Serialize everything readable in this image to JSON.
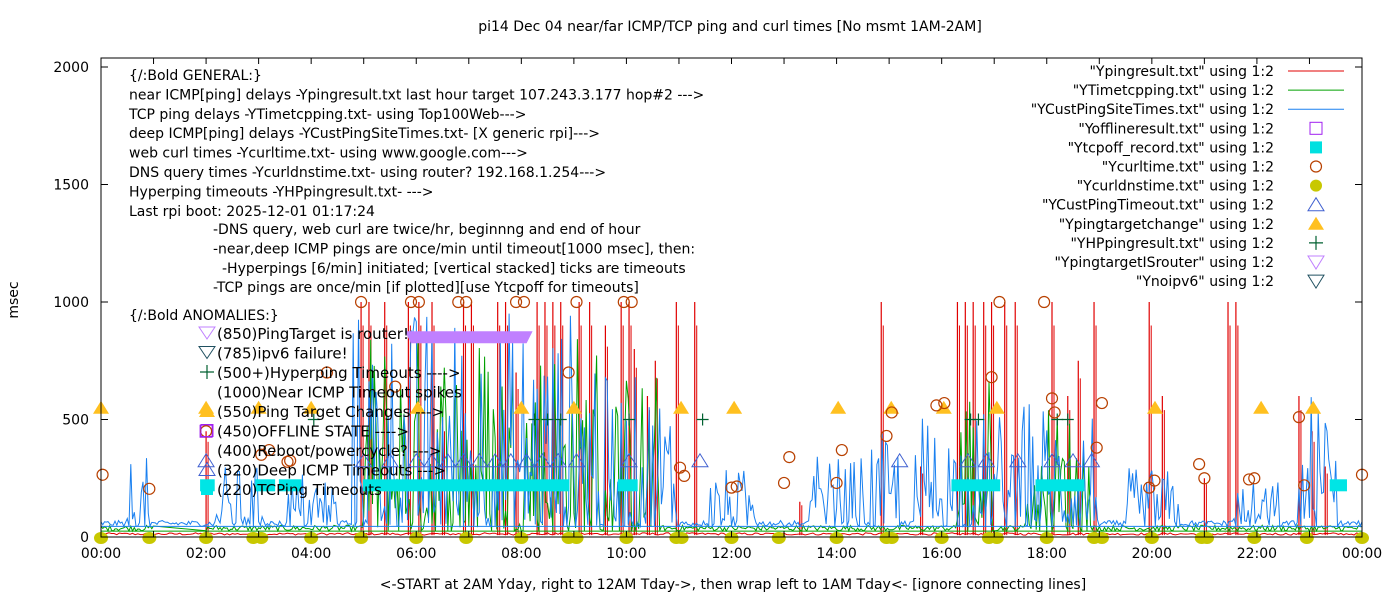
{
  "chart_data": {
    "type": "line",
    "title": "pi14 Dec 04  near/far ICMP/TCP ping and curl times [No msmt 1AM-2AM]",
    "xlabel": "<-START at 2AM Yday, right to 12AM Tday->, then wrap left to 1AM Tday<- [ignore connecting lines]",
    "ylabel": "msec",
    "xlim_hours": [
      0,
      24
    ],
    "ylim": [
      0,
      2000
    ],
    "x_ticks": [
      "00:00",
      "02:00",
      "04:00",
      "06:00",
      "08:00",
      "10:00",
      "12:00",
      "14:00",
      "16:00",
      "18:00",
      "20:00",
      "22:00",
      "00:00"
    ],
    "y_ticks": [
      0,
      500,
      1000,
      1500,
      2000
    ],
    "grid": false,
    "legend_position": "top-right",
    "annotations_general": [
      "{/:Bold GENERAL:}",
      "near ICMP[ping] delays -Ypingresult.txt last hour target 107.243.3.177 hop#2 --->",
      "TCP ping delays -YTimetcpping.txt- using Top100Web--->",
      "deep ICMP[ping] delays -YCustPingSiteTimes.txt- [X generic rpi]--->",
      "web curl times -Ycurltime.txt- using www.google.com--->",
      "DNS query times -Ycurldnstime.txt- using router? 192.168.1.254--->",
      "Hyperping timeouts -YHPpingresult.txt- --->",
      "Last rpi boot: 2025-12-01 01:17:24"
    ],
    "annotations_notes": [
      "-DNS query, web curl are twice/hr, beginnng and end of hour",
      "-near,deep ICMP pings are once/min until timeout[1000 msec], then:",
      "-Hyperpings [6/min] initiated; [vertical stacked] ticks are timeouts",
      "-TCP pings are once/min [if plotted][use Ytcpoff for timeouts]"
    ],
    "annotations_anomalies_title": "{/:Bold ANOMALIES:}",
    "annotations_anomalies": [
      {
        "symbol": "tri-down-open-lavender",
        "text": "(850)PingTarget is router!"
      },
      {
        "symbol": "tri-down-open-darkteal",
        "text": "(785)ipv6 failure!"
      },
      {
        "symbol": "plus-darkgreen",
        "text": "(500+)Hyperping Timeouts ---->"
      },
      {
        "symbol": "none",
        "text": "(1000)Near ICMP Timeout spikes"
      },
      {
        "symbol": "tri-up-filled-orange",
        "text": "(550)Ping Target Changes --->"
      },
      {
        "symbol": "square-open-purple",
        "text": "(450)OFFLINE STATE ---->"
      },
      {
        "symbol": "none",
        "text": "(400)Reboot/powercycle? --->"
      },
      {
        "symbol": "tri-up-open-blue",
        "text": "(320)Deep ICMP Timeouts --->"
      },
      {
        "symbol": "square-filled-cyan",
        "text": "(220)TCPing Timeouts"
      }
    ],
    "legend": [
      {
        "label": "\"Ypingresult.txt\" using 1:2",
        "style": "line",
        "color": "#e00000"
      },
      {
        "label": "\"YTimetcpping.txt\" using 1:2",
        "style": "line",
        "color": "#00a000"
      },
      {
        "label": "\"YCustPingSiteTimes.txt\" using 1:2",
        "style": "line",
        "color": "#1a80f0"
      },
      {
        "label": "\"Yofflineresult.txt\" using 1:2",
        "style": "square-open",
        "color": "#a020f0"
      },
      {
        "label": "\"Ytcpoff_record.txt\" using 1:2",
        "style": "square-filled",
        "color": "#00e0e0"
      },
      {
        "label": "\"Ycurltime.txt\" using 1:2",
        "style": "circle-open",
        "color": "#b84000"
      },
      {
        "label": "\"Ycurldnstime.txt\" using 1:2",
        "style": "circle-filled",
        "color": "#c8c800"
      },
      {
        "label": "\"YCustPingTimeout.txt\" using 1:2",
        "style": "tri-up-open",
        "color": "#4060d0"
      },
      {
        "label": "\"Ypingtargetchange\" using 1:2",
        "style": "tri-up-filled",
        "color": "#ffc020"
      },
      {
        "label": "\"YHPpingresult.txt\" using 1:2",
        "style": "plus",
        "color": "#006030"
      },
      {
        "label": "\"YpingtargetISrouter\" using 1:2",
        "style": "tri-down-open",
        "color": "#c080ff"
      },
      {
        "label": "\"Ynoipv6\" using 1:2",
        "style": "tri-down-open",
        "color": "#205060"
      }
    ],
    "series": [
      {
        "name": "Ypingresult.txt",
        "kind": "spikes",
        "color": "#e00000",
        "baseline": 8,
        "spikes": [
          [
            2.0,
            450
          ],
          [
            4.95,
            1000
          ],
          [
            5.1,
            1000
          ],
          [
            5.4,
            1000
          ],
          [
            5.85,
            1000
          ],
          [
            6.05,
            1000
          ],
          [
            6.3,
            1000
          ],
          [
            6.5,
            500
          ],
          [
            6.9,
            1000
          ],
          [
            7.05,
            1000
          ],
          [
            7.55,
            1000
          ],
          [
            7.7,
            1000
          ],
          [
            7.9,
            700
          ],
          [
            8.3,
            1000
          ],
          [
            8.45,
            1000
          ],
          [
            8.6,
            1000
          ],
          [
            8.75,
            1000
          ],
          [
            9.1,
            1000
          ],
          [
            9.3,
            1000
          ],
          [
            9.6,
            900
          ],
          [
            9.9,
            1000
          ],
          [
            10.05,
            1000
          ],
          [
            10.15,
            800
          ],
          [
            10.4,
            600
          ],
          [
            10.55,
            750
          ],
          [
            10.95,
            1000
          ],
          [
            11.3,
            1000
          ],
          [
            13.3,
            150
          ],
          [
            14.85,
            1000
          ],
          [
            15.6,
            300
          ],
          [
            16.3,
            1000
          ],
          [
            16.45,
            1000
          ],
          [
            16.6,
            1000
          ],
          [
            16.8,
            1000
          ],
          [
            16.95,
            1000
          ],
          [
            17.2,
            1000
          ],
          [
            17.4,
            1000
          ],
          [
            18.1,
            1000
          ],
          [
            18.4,
            600
          ],
          [
            18.6,
            750
          ],
          [
            18.9,
            1000
          ],
          [
            19.95,
            1000
          ],
          [
            20.2,
            600
          ],
          [
            21.0,
            250
          ],
          [
            21.45,
            1000
          ],
          [
            21.6,
            1000
          ],
          [
            22.8,
            600
          ],
          [
            23.05,
            450
          ],
          [
            23.3,
            300
          ]
        ]
      },
      {
        "name": "YTimetcpping.txt",
        "kind": "noisy",
        "color": "#00a000",
        "baseline": 25,
        "bursts": [
          [
            5.0,
            9.5,
            900
          ],
          [
            9.6,
            10.6,
            700
          ],
          [
            16.3,
            17.0,
            700
          ],
          [
            17.6,
            18.0,
            450
          ],
          [
            18.0,
            18.8,
            550
          ]
        ]
      },
      {
        "name": "YCustPingSiteTimes.txt",
        "kind": "noisy",
        "color": "#1a80f0",
        "baseline": 45,
        "bursts": [
          [
            0.5,
            0.9,
            300
          ],
          [
            2.2,
            3.2,
            260
          ],
          [
            3.5,
            4.5,
            250
          ],
          [
            4.8,
            9.5,
            950
          ],
          [
            9.6,
            11.0,
            650
          ],
          [
            11.5,
            12.5,
            250
          ],
          [
            13.5,
            14.5,
            300
          ],
          [
            14.6,
            15.2,
            400
          ],
          [
            15.5,
            17.5,
            500
          ],
          [
            17.5,
            19.0,
            560
          ],
          [
            19.5,
            20.5,
            250
          ],
          [
            21.5,
            22.5,
            200
          ],
          [
            22.8,
            23.5,
            600
          ]
        ]
      }
    ],
    "markers": {
      "Ypingtargetchange": {
        "y": 550,
        "x_hours": [
          0.0,
          2.0,
          3.0,
          4.0,
          6.03,
          8.0,
          9.0,
          11.04,
          12.05,
          14.03,
          15.04,
          16.04,
          17.05,
          20.06,
          22.08,
          23.07
        ]
      },
      "Ycurltime": [
        [
          0.03,
          265
        ],
        [
          0.92,
          205
        ],
        [
          2.0,
          450
        ],
        [
          3.05,
          350
        ],
        [
          3.2,
          370
        ],
        [
          3.55,
          320
        ],
        [
          3.6,
          325
        ],
        [
          4.3,
          700
        ],
        [
          4.95,
          1000
        ],
        [
          5.6,
          640
        ],
        [
          5.9,
          1000
        ],
        [
          6.05,
          1000
        ],
        [
          6.8,
          1000
        ],
        [
          6.95,
          1000
        ],
        [
          7.9,
          1000
        ],
        [
          8.05,
          1000
        ],
        [
          8.9,
          700
        ],
        [
          9.05,
          1000
        ],
        [
          9.95,
          1000
        ],
        [
          10.1,
          1000
        ],
        [
          11.02,
          295
        ],
        [
          11.1,
          260
        ],
        [
          12.0,
          210
        ],
        [
          12.1,
          215
        ],
        [
          13.0,
          230
        ],
        [
          13.1,
          340
        ],
        [
          14.0,
          230
        ],
        [
          14.1,
          370
        ],
        [
          14.95,
          430
        ],
        [
          15.05,
          530
        ],
        [
          15.9,
          560
        ],
        [
          16.05,
          570
        ],
        [
          16.95,
          680
        ],
        [
          17.1,
          1000
        ],
        [
          17.95,
          1000
        ],
        [
          18.1,
          590
        ],
        [
          18.15,
          530
        ],
        [
          18.95,
          380
        ],
        [
          19.05,
          570
        ],
        [
          19.95,
          210
        ],
        [
          20.05,
          240
        ],
        [
          20.9,
          310
        ],
        [
          21.0,
          250
        ],
        [
          21.85,
          245
        ],
        [
          21.95,
          250
        ],
        [
          22.8,
          510
        ],
        [
          22.9,
          220
        ],
        [
          24.0,
          265
        ]
      ],
      "Ycurldnstime": {
        "y": 0,
        "x_hours": [
          0.0,
          0.92,
          2.0,
          2.9,
          3.05,
          4.0,
          4.95,
          6.0,
          6.95,
          8.0,
          8.9,
          9.05,
          10.0,
          10.95,
          11.05,
          12.0,
          12.9,
          14.0,
          14.95,
          15.05,
          16.0,
          16.9,
          17.05,
          18.0,
          18.9,
          19.05,
          20.0,
          20.95,
          21.05,
          21.95,
          22.95,
          24.0
        ]
      },
      "Ytcpoff_record": {
        "y": 220,
        "ranges_hours": [
          [
            2.0,
            2.05
          ],
          [
            3.05,
            3.2
          ],
          [
            3.5,
            3.7
          ],
          [
            5.1,
            8.8
          ],
          [
            9.95,
            10.1
          ],
          [
            16.3,
            17.0
          ],
          [
            17.9,
            18.6
          ],
          [
            23.5,
            23.6
          ]
        ]
      },
      "Yofflineresult": [
        [
          2.0,
          450
        ]
      ],
      "YCustPingTimeout": {
        "y": 320,
        "x_hours": [
          2.0,
          5.0,
          5.5,
          6.0,
          6.3,
          6.6,
          6.9,
          7.2,
          7.5,
          7.8,
          8.1,
          8.4,
          8.7,
          9.05,
          10.05,
          11.4,
          15.2,
          16.5,
          16.85,
          17.45,
          18.1,
          18.5,
          18.85
        ]
      },
      "YHPpingresult": {
        "y": 500,
        "x_hours": [
          4.05,
          8.25,
          8.5,
          8.75,
          10.05,
          11.45,
          16.55,
          16.7,
          18.2,
          18.4
        ]
      },
      "YpingtargetISrouter": {
        "y": 850,
        "range_hours": [
          5.9,
          8.1
        ]
      }
    }
  }
}
